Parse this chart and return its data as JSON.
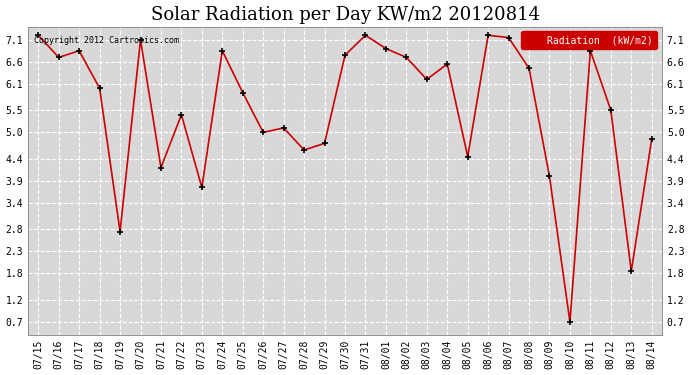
{
  "title": "Solar Radiation per Day KW/m2 20120814",
  "legend_label": "Radiation  (kW/m2)",
  "copyright_text": "Copyright 2012 Cartronics.com",
  "labels": [
    "07/15",
    "07/16",
    "07/17",
    "07/18",
    "07/19",
    "07/20",
    "07/21",
    "07/22",
    "07/23",
    "07/24",
    "07/25",
    "07/26",
    "07/27",
    "07/28",
    "07/29",
    "07/30",
    "07/31",
    "08/01",
    "08/02",
    "08/03",
    "08/04",
    "08/05",
    "08/06",
    "08/07",
    "08/08",
    "08/09",
    "08/10",
    "08/11",
    "08/12",
    "08/13",
    "08/14"
  ],
  "values": [
    7.2,
    6.7,
    6.85,
    6.0,
    2.75,
    7.1,
    4.2,
    5.4,
    3.75,
    6.85,
    5.9,
    5.0,
    5.1,
    4.6,
    4.75,
    6.75,
    7.2,
    6.9,
    6.7,
    6.2,
    6.55,
    4.45,
    7.2,
    7.15,
    6.45,
    4.0,
    0.7,
    6.85,
    5.5,
    1.85,
    4.85
  ],
  "line_color": "#cc0000",
  "marker_color": "#000000",
  "background_color": "#ffffff",
  "plot_bg_color": "#d8d8d8",
  "grid_color": "#ffffff",
  "ylim": [
    0.4,
    7.4
  ],
  "yticks": [
    0.7,
    1.2,
    1.8,
    2.3,
    2.8,
    3.4,
    3.9,
    4.4,
    5.0,
    5.5,
    6.1,
    6.6,
    7.1
  ],
  "title_fontsize": 13,
  "legend_bg": "#cc0000",
  "legend_text_color": "#ffffff"
}
